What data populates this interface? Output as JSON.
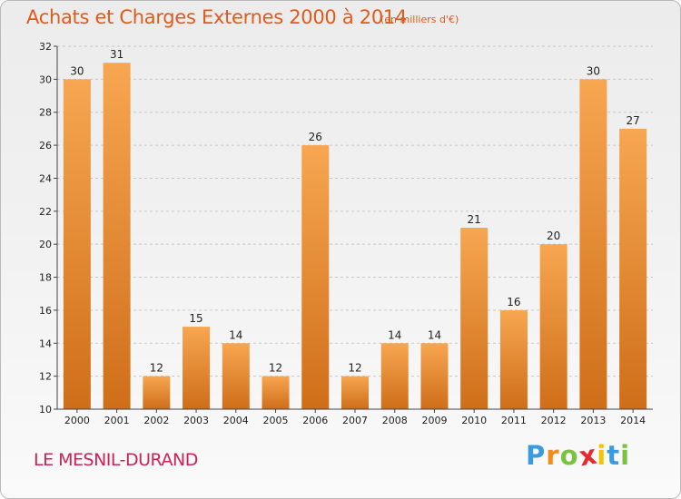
{
  "header": {
    "title": "Achats et Charges Externes 2000 à 2014",
    "unit": "(en milliers d'€)"
  },
  "footer": {
    "place": "LE MESNIL-DURAND",
    "logo_letters": [
      "P",
      "r",
      "o",
      "x",
      "i",
      "t",
      "i"
    ],
    "logo_colors": [
      "#3a9be0",
      "#f28c1e",
      "#7cc242",
      "#e8292e",
      "#f5c400",
      "#3a9be0",
      "#7cc242"
    ]
  },
  "colors": {
    "bar_light": "#f7a651",
    "bar_dark": "#cf6e19",
    "grid": "#c8c8c8",
    "axis": "#444444"
  },
  "chart_data": {
    "type": "bar",
    "title": "Achats et Charges Externes 2000 à 2014",
    "subtitle": "(en milliers d'€)",
    "categories": [
      "2000",
      "2001",
      "2002",
      "2003",
      "2004",
      "2005",
      "2006",
      "2007",
      "2008",
      "2009",
      "2010",
      "2011",
      "2012",
      "2013",
      "2014"
    ],
    "values": [
      30,
      31,
      12,
      15,
      14,
      12,
      26,
      12,
      14,
      14,
      21,
      16,
      20,
      30,
      27
    ],
    "ylim": [
      10,
      32
    ],
    "yticks": [
      10,
      12,
      14,
      16,
      18,
      20,
      22,
      24,
      26,
      28,
      30,
      32
    ],
    "grid": true,
    "xlabel": "",
    "ylabel": ""
  }
}
